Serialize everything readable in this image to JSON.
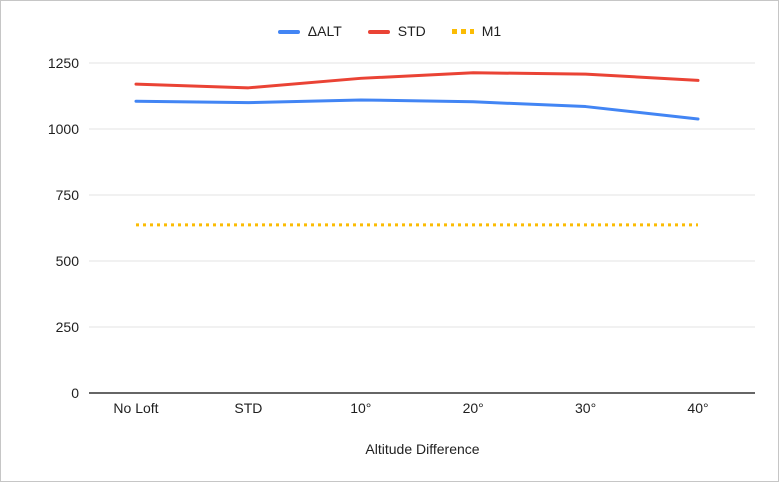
{
  "chart_data": {
    "type": "line",
    "title": "",
    "xlabel": "Altitude Difference",
    "ylabel": "",
    "categories": [
      "No Loft",
      "STD",
      "10°",
      "20°",
      "30°",
      "40°"
    ],
    "series": [
      {
        "name": "ΔALT",
        "color": "#4285f4",
        "line_style": "solid",
        "values": [
          1105,
          1100,
          1110,
          1103,
          1085,
          1038
        ]
      },
      {
        "name": "STD",
        "color": "#ea4335",
        "line_style": "solid",
        "values": [
          1170,
          1156,
          1192,
          1213,
          1208,
          1184
        ]
      },
      {
        "name": "M1",
        "color": "#fbbc04",
        "line_style": "dotted",
        "values": [
          637,
          637,
          637,
          637,
          637,
          637
        ]
      }
    ],
    "ylim": [
      0,
      1250
    ],
    "yticks": [
      0,
      250,
      500,
      750,
      1000,
      1250
    ],
    "grid": true,
    "legend_position": "top"
  },
  "colors": {
    "background": "#ffffff",
    "frame_border": "#c6c6c6",
    "gridline": "#e3e3e3",
    "baseline": "#666666",
    "axis_text": "#1f1f1f"
  }
}
